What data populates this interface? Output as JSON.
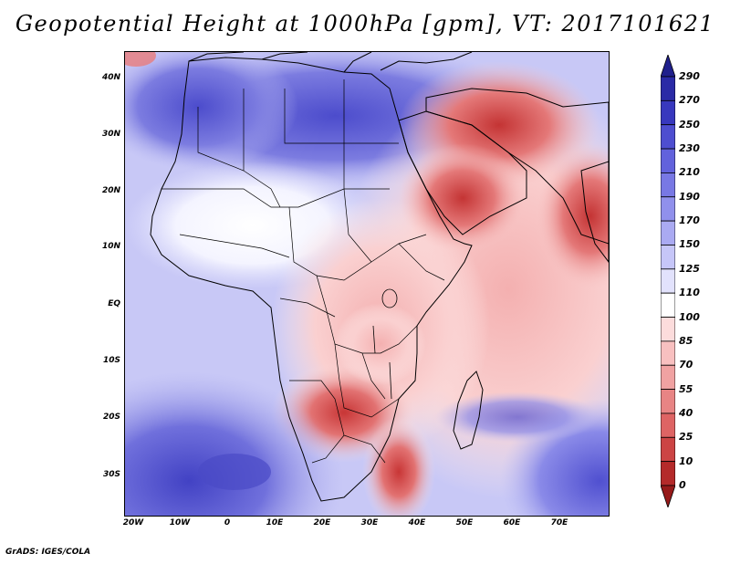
{
  "title": "Geopotential Height at 1000hPa [gpm], VT: 2017101621",
  "credit": "GrADS: IGES/COLA",
  "lat_ticks": [
    "40N",
    "30N",
    "20N",
    "10N",
    "EQ",
    "10S",
    "20S",
    "30S"
  ],
  "lon_ticks": [
    "20W",
    "10W",
    "0",
    "10E",
    "20E",
    "30E",
    "40E",
    "50E",
    "60E",
    "70E"
  ],
  "colorbar": {
    "levels": [
      "290",
      "270",
      "250",
      "230",
      "210",
      "190",
      "170",
      "150",
      "125",
      "110",
      "100",
      "85",
      "70",
      "55",
      "40",
      "25",
      "10",
      "0"
    ],
    "colors": [
      "#20208c",
      "#2a2aa6",
      "#3838be",
      "#4e4ed0",
      "#6262dc",
      "#7878e4",
      "#9090ec",
      "#aaaaf2",
      "#c6c6f8",
      "#e2e2fc",
      "#ffffff",
      "#fcdcdc",
      "#f8c0c0",
      "#f0a2a2",
      "#e88484",
      "#de6464",
      "#cc4444",
      "#b42a2a",
      "#961a1a"
    ]
  }
}
